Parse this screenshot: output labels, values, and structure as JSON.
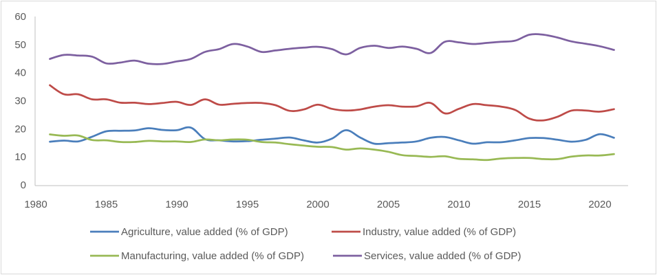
{
  "chart_data": {
    "type": "line",
    "title": "",
    "xlabel": "",
    "ylabel": "",
    "xlim": [
      1980,
      2022
    ],
    "ylim": [
      0,
      60
    ],
    "x_ticks": [
      "1980",
      "1985",
      "1990",
      "1995",
      "2000",
      "2005",
      "2010",
      "2015",
      "2020"
    ],
    "y_ticks": [
      "0",
      "10",
      "20",
      "30",
      "40",
      "50",
      "60"
    ],
    "grid": false,
    "legend_position": "bottom",
    "x": [
      1981,
      1982,
      1983,
      1984,
      1985,
      1986,
      1987,
      1988,
      1989,
      1990,
      1991,
      1992,
      1993,
      1994,
      1995,
      1996,
      1997,
      1998,
      1999,
      2000,
      2001,
      2002,
      2003,
      2004,
      2005,
      2006,
      2007,
      2008,
      2009,
      2010,
      2011,
      2012,
      2013,
      2014,
      2015,
      2016,
      2017,
      2018,
      2019,
      2020,
      2021
    ],
    "series": [
      {
        "name": "Agriculture, value added (% of GDP)",
        "color": "#4a7ebb",
        "values": [
          15.4,
          15.8,
          15.5,
          17.2,
          19.1,
          19.3,
          19.4,
          20.2,
          19.6,
          19.5,
          20.4,
          16.3,
          15.9,
          15.5,
          15.6,
          16.1,
          16.5,
          16.9,
          15.9,
          15.1,
          16.5,
          19.5,
          16.9,
          14.7,
          14.9,
          15.1,
          15.5,
          16.8,
          17.1,
          15.9,
          14.7,
          15.2,
          15.2,
          15.9,
          16.7,
          16.7,
          16.1,
          15.4,
          16.1,
          18.1,
          16.8
        ]
      },
      {
        "name": "Industry, value added (% of GDP)",
        "color": "#be4b48",
        "values": [
          35.5,
          32.3,
          32.3,
          30.5,
          30.5,
          29.3,
          29.3,
          28.8,
          29.2,
          29.6,
          28.5,
          30.5,
          28.6,
          28.9,
          29.2,
          29.2,
          28.4,
          26.4,
          26.9,
          28.6,
          27.1,
          26.5,
          26.9,
          27.9,
          28.4,
          27.9,
          28.0,
          29.2,
          25.5,
          27.1,
          28.8,
          28.4,
          27.9,
          26.7,
          23.6,
          23.0,
          24.3,
          26.5,
          26.5,
          26.1,
          27.0
        ]
      },
      {
        "name": "Manufacturing, value added (% of GDP)",
        "color": "#98b954",
        "values": [
          18.0,
          17.5,
          17.6,
          16.0,
          15.9,
          15.3,
          15.3,
          15.7,
          15.5,
          15.5,
          15.3,
          16.2,
          15.9,
          16.2,
          16.1,
          15.3,
          15.1,
          14.5,
          14.0,
          13.6,
          13.5,
          12.6,
          13.0,
          12.6,
          11.8,
          10.6,
          10.3,
          10.0,
          10.2,
          9.3,
          9.1,
          8.9,
          9.4,
          9.6,
          9.6,
          9.2,
          9.2,
          10.1,
          10.5,
          10.5,
          11.0
        ]
      },
      {
        "name": "Services, value added (% of GDP)",
        "color": "#7d60a0",
        "values": [
          44.9,
          46.3,
          46.1,
          45.7,
          43.3,
          43.6,
          44.3,
          43.2,
          43.1,
          44.0,
          44.9,
          47.4,
          48.4,
          50.2,
          49.3,
          47.4,
          47.9,
          48.5,
          48.9,
          49.2,
          48.4,
          46.5,
          48.8,
          49.6,
          48.8,
          49.3,
          48.5,
          47.0,
          51.0,
          50.8,
          50.2,
          50.6,
          51.0,
          51.4,
          53.5,
          53.5,
          52.5,
          51.1,
          50.3,
          49.4,
          48.1
        ]
      }
    ]
  }
}
